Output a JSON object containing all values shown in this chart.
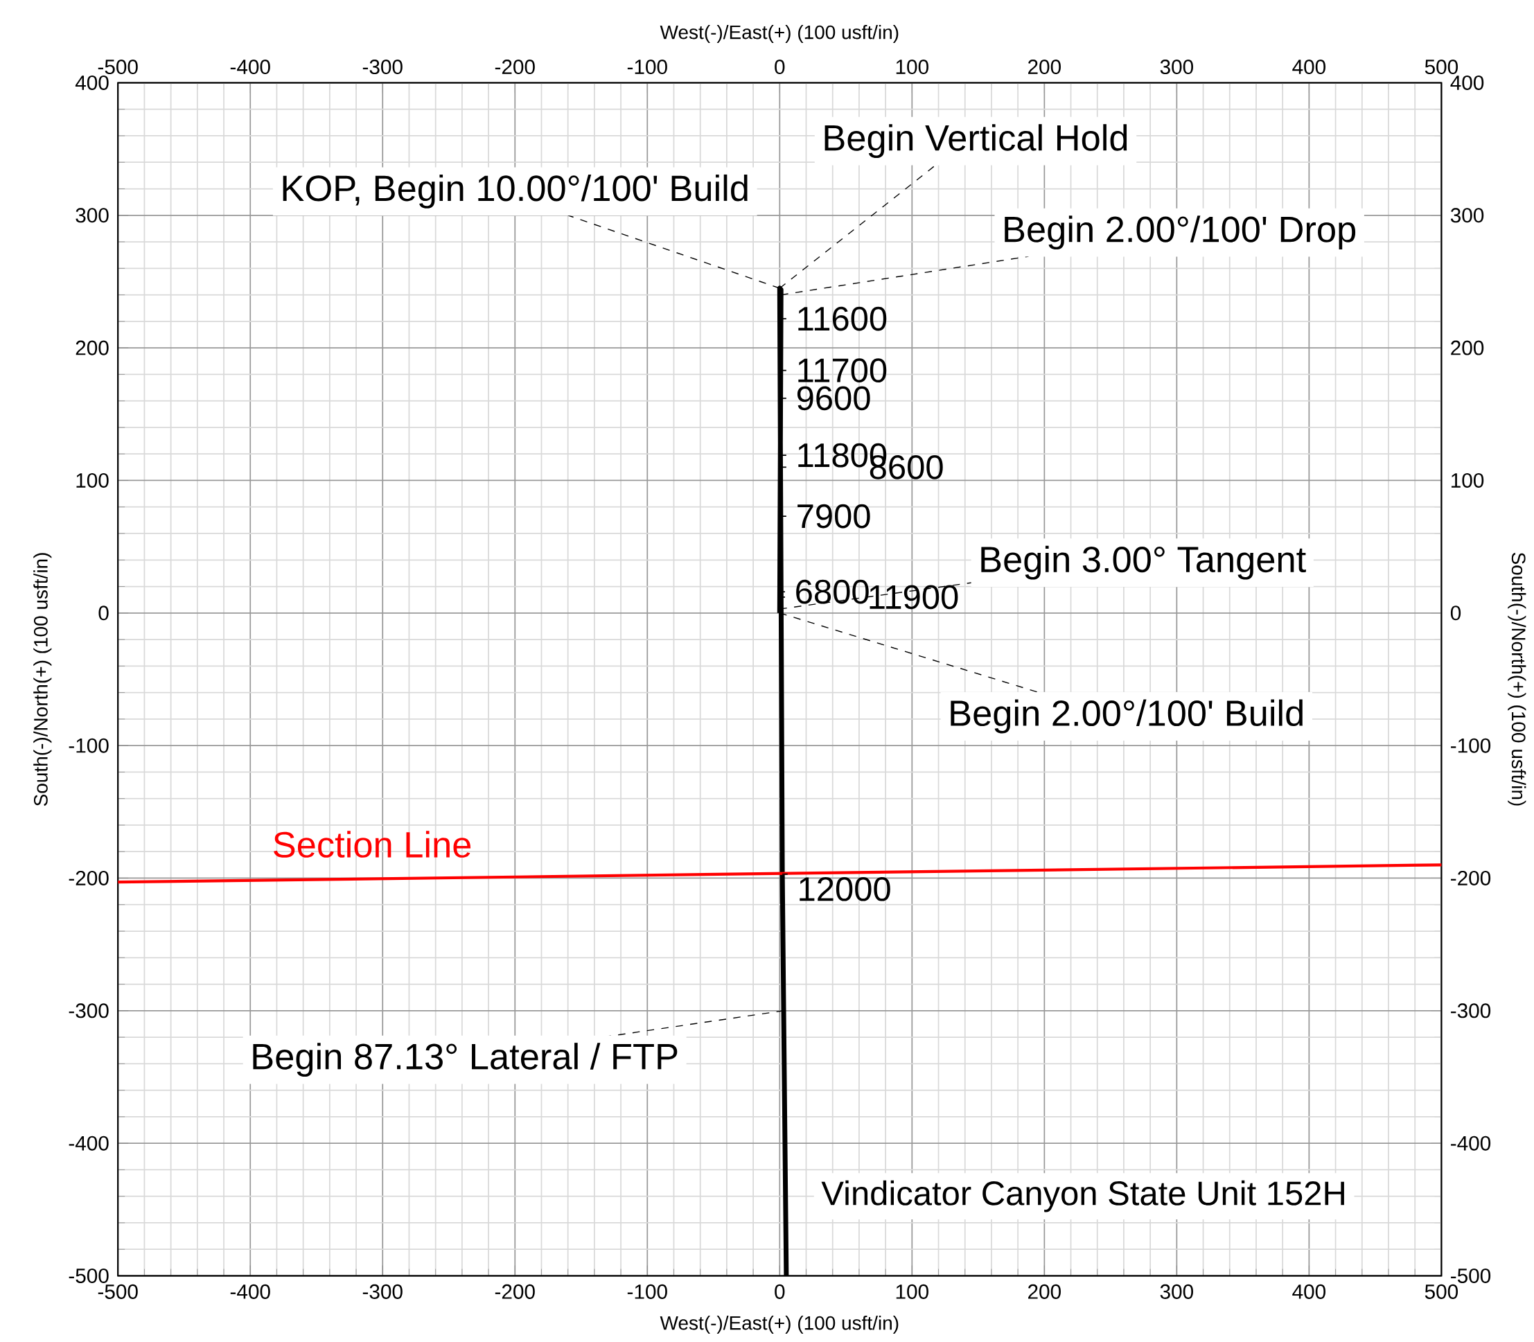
{
  "chart_data": {
    "type": "line",
    "xlabel": "West(-)/East(+) (100 usft/in)",
    "x2label": "West(-)/East(+) (100 usft/in)",
    "ylabel": "South(-)/North(+) (100 usft/in)",
    "y2label": "South(-)/North(+) (100 usft/in)",
    "xlim": [
      -500,
      500
    ],
    "xticks": [
      -500,
      -400,
      -300,
      -200,
      -100,
      0,
      100,
      200,
      300,
      400,
      500
    ],
    "x2lim": [
      -500,
      500
    ],
    "x2ticks": [
      -500,
      -400,
      -300,
      -200,
      -100,
      0,
      100,
      200,
      300,
      400,
      500
    ],
    "ylim": [
      -500,
      400
    ],
    "yticks": [
      -500,
      -400,
      -300,
      -200,
      -100,
      0,
      100,
      200,
      300,
      400
    ],
    "y2lim": [
      -500,
      400
    ],
    "y2ticks": [
      -500,
      -400,
      -300,
      -200,
      -100,
      0,
      100,
      200,
      300,
      400
    ],
    "grid": true,
    "series": [
      {
        "color": "#000000",
        "x": [
          0,
          1,
          0,
          2,
          3,
          5
        ],
        "values": [
          0,
          244,
          245,
          -197,
          -300,
          -500
        ]
      },
      {
        "name": "Section Line",
        "color": "#ff0000",
        "x": [
          -500,
          500
        ],
        "values": [
          -203,
          -190
        ]
      }
    ],
    "annotations": [
      {
        "text": "KOP, Begin 10.00°/100' Build",
        "x": 0,
        "y": 245
      },
      {
        "text": "Begin Vertical Hold",
        "x": 0,
        "y": 245
      },
      {
        "text": "Begin 2.00°/100' Drop",
        "x": 1,
        "y": 240
      },
      {
        "text": "Begin 3.00° Tangent",
        "x": 0,
        "y": 3
      },
      {
        "text": "Begin 2.00°/100' Build",
        "x": 0,
        "y": 0
      },
      {
        "text": "Begin 87.13° Lateral / FTP",
        "x": 3,
        "y": -300
      },
      {
        "text": "11600",
        "x": 1,
        "y": 222
      },
      {
        "text": "11700",
        "x": 1,
        "y": 183
      },
      {
        "text": "9600",
        "x": 1,
        "y": 162
      },
      {
        "text": "11800",
        "x": 1,
        "y": 119
      },
      {
        "text": "8600",
        "x": 1,
        "y": 110
      },
      {
        "text": "7900",
        "x": 1,
        "y": 73
      },
      {
        "text": "6800",
        "x": 0,
        "y": 16
      },
      {
        "text": "11900",
        "x": 0,
        "y": 12
      },
      {
        "text": "12000",
        "x": 2,
        "y": -197
      },
      "Vindicator Canyon State Unit 152H"
    ]
  }
}
